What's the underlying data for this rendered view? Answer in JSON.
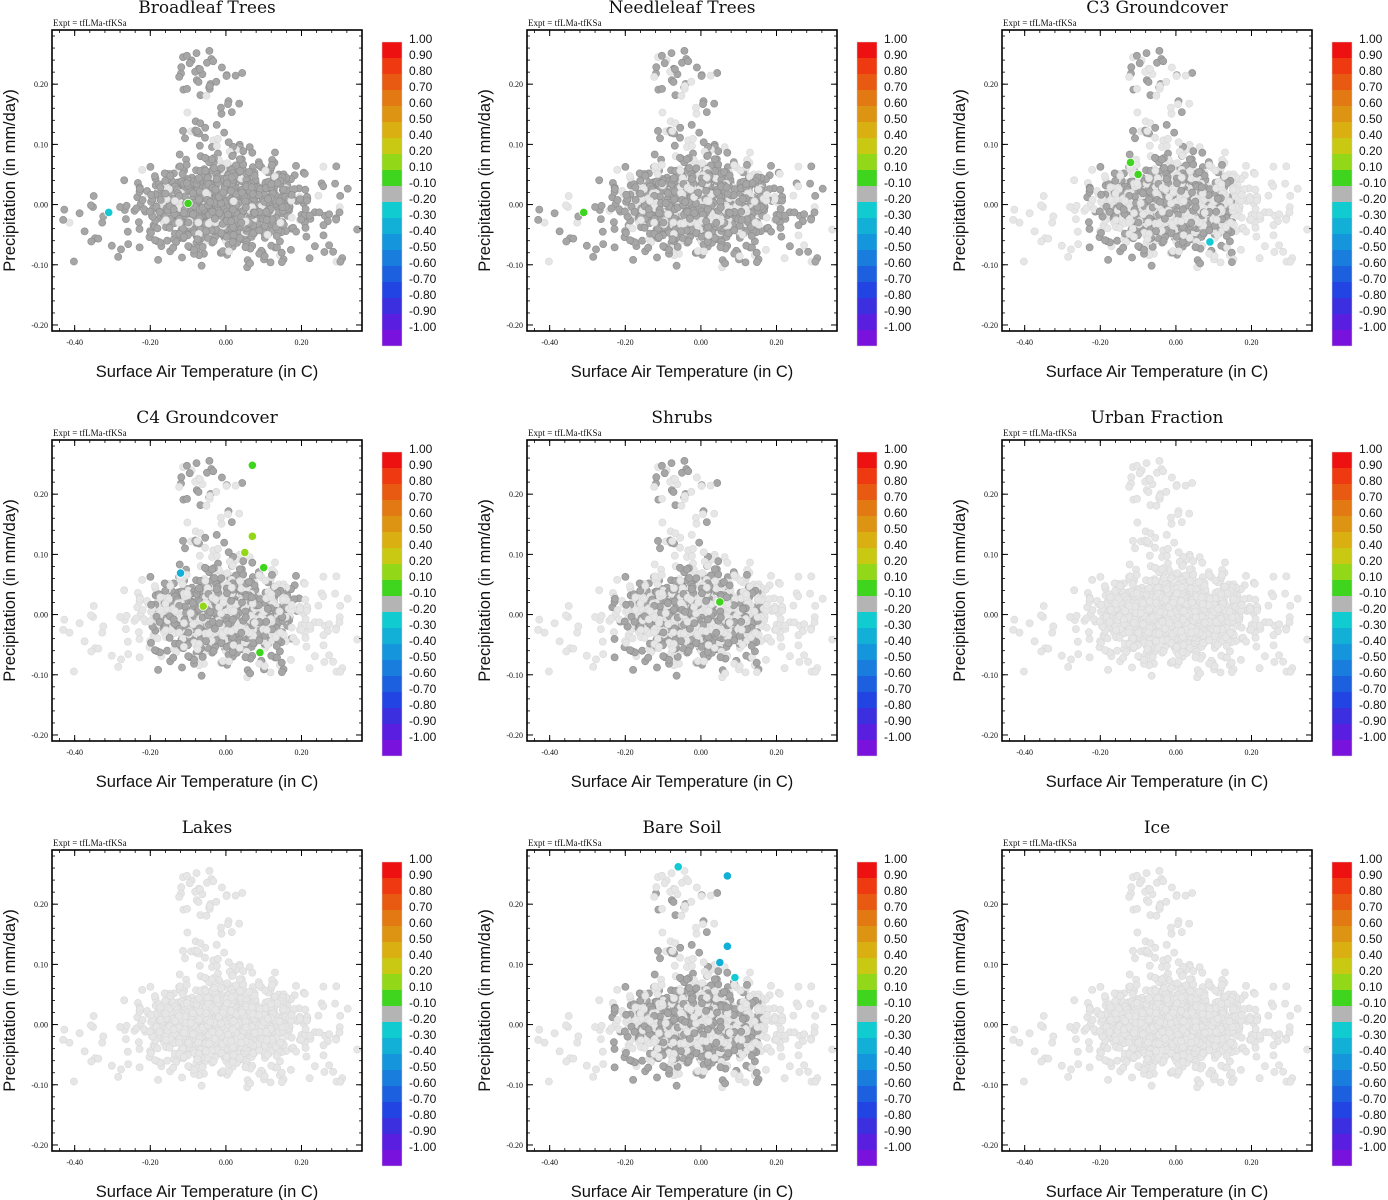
{
  "experiment_label": "Expt = tfLMa-tfKSa",
  "colorbar": {
    "labels": [
      "1.00",
      "0.90",
      "0.80",
      "0.70",
      "0.60",
      "0.50",
      "0.40",
      "0.20",
      "0.10",
      "-0.10",
      "-0.20",
      "-0.30",
      "-0.40",
      "-0.50",
      "-0.60",
      "-0.70",
      "-0.80",
      "-0.90",
      "-1.00"
    ],
    "colors": [
      "#ee1111",
      "#ef3a11",
      "#e85a12",
      "#e27913",
      "#de9413",
      "#d9af12",
      "#c9c913",
      "#93d719",
      "#3fd51f",
      "#b4b4b4",
      "#10cbd0",
      "#12b0d6",
      "#1596dc",
      "#197ddd",
      "#1d60df",
      "#2244e2",
      "#3b2fe0",
      "#5a1ee0",
      "#7a12dd"
    ],
    "colors_note": "red→green→grey(|r|<0.1)→cyan→blue→violet"
  },
  "chart_data": [
    {
      "type": "scatter",
      "title": "Broadleaf Trees",
      "xlabel": "Surface Air Temperature (in C)",
      "ylabel": "Precipitation (in mm/day)",
      "xlim": [
        -0.46,
        0.36
      ],
      "ylim": [
        -0.21,
        0.29
      ],
      "xticks": [
        "-0.40",
        "-0.20",
        "0.00",
        "0.20"
      ],
      "yticks": [
        "-0.20",
        "-0.10",
        "0.00",
        "0.10",
        "0.20"
      ],
      "background_color": "#e6e6e6",
      "dark_color": "#a6a6a6",
      "dark_fraction": 0.92,
      "dark_region": null,
      "highlights": [
        {
          "x": -0.31,
          "y": -0.013,
          "color": "#12c9d4"
        },
        {
          "x": -0.1,
          "y": 0.002,
          "color": "#3fd51f"
        }
      ]
    },
    {
      "type": "scatter",
      "title": "Needleleaf Trees",
      "xlabel": "Surface Air Temperature (in C)",
      "ylabel": "Precipitation (in mm/day)",
      "xlim": [
        -0.46,
        0.36
      ],
      "ylim": [
        -0.21,
        0.29
      ],
      "xticks": [
        "-0.40",
        "-0.20",
        "0.00",
        "0.20"
      ],
      "yticks": [
        "-0.20",
        "-0.10",
        "0.00",
        "0.10",
        "0.20"
      ],
      "background_color": "#e6e6e6",
      "dark_color": "#a6a6a6",
      "dark_fraction": 0.72,
      "dark_region": null,
      "highlights": [
        {
          "x": -0.31,
          "y": -0.013,
          "color": "#3fd51f"
        }
      ]
    },
    {
      "type": "scatter",
      "title": "C3 Groundcover",
      "xlabel": "Surface Air Temperature (in C)",
      "ylabel": "Precipitation (in mm/day)",
      "xlim": [
        -0.46,
        0.36
      ],
      "ylim": [
        -0.21,
        0.29
      ],
      "xticks": [
        "-0.40",
        "-0.20",
        "0.00",
        "0.20"
      ],
      "yticks": [
        "-0.20",
        "-0.10",
        "0.00",
        "0.10",
        "0.20"
      ],
      "background_color": "#e6e6e6",
      "dark_color": "#a6a6a6",
      "dark_fraction": 0.5,
      "dark_region": [
        -0.24,
        0.15,
        -0.18,
        0.27
      ],
      "highlights": [
        {
          "x": -0.12,
          "y": 0.07,
          "color": "#3fd51f"
        },
        {
          "x": -0.1,
          "y": 0.05,
          "color": "#3fd51f"
        },
        {
          "x": 0.09,
          "y": -0.062,
          "color": "#12c9d4"
        }
      ]
    },
    {
      "type": "scatter",
      "title": "C4 Groundcover",
      "xlabel": "Surface Air Temperature (in C)",
      "ylabel": "Precipitation (in mm/day)",
      "xlim": [
        -0.46,
        0.36
      ],
      "ylim": [
        -0.21,
        0.29
      ],
      "xticks": [
        "-0.40",
        "-0.20",
        "0.00",
        "0.20"
      ],
      "yticks": [
        "-0.20",
        "-0.10",
        "0.00",
        "0.10",
        "0.20"
      ],
      "background_color": "#e6e6e6",
      "dark_color": "#a6a6a6",
      "dark_fraction": 0.55,
      "dark_region": [
        -0.2,
        0.2,
        -0.2,
        0.27
      ],
      "highlights": [
        {
          "x": 0.07,
          "y": 0.248,
          "color": "#3fd51f"
        },
        {
          "x": 0.07,
          "y": 0.13,
          "color": "#93d719"
        },
        {
          "x": 0.05,
          "y": 0.103,
          "color": "#93d719"
        },
        {
          "x": 0.1,
          "y": 0.078,
          "color": "#3fd51f"
        },
        {
          "x": -0.12,
          "y": 0.069,
          "color": "#12b0d6"
        },
        {
          "x": -0.06,
          "y": 0.014,
          "color": "#93d719"
        },
        {
          "x": 0.09,
          "y": -0.063,
          "color": "#3fd51f"
        }
      ]
    },
    {
      "type": "scatter",
      "title": "Shrubs",
      "xlabel": "Surface Air Temperature (in C)",
      "ylabel": "Precipitation (in mm/day)",
      "xlim": [
        -0.46,
        0.36
      ],
      "ylim": [
        -0.21,
        0.29
      ],
      "xticks": [
        "-0.40",
        "-0.20",
        "0.00",
        "0.20"
      ],
      "yticks": [
        "-0.20",
        "-0.10",
        "0.00",
        "0.10",
        "0.20"
      ],
      "background_color": "#e6e6e6",
      "dark_color": "#a6a6a6",
      "dark_fraction": 0.45,
      "dark_region": [
        -0.24,
        0.16,
        -0.13,
        0.27
      ],
      "highlights": [
        {
          "x": 0.05,
          "y": 0.021,
          "color": "#3fd51f"
        }
      ]
    },
    {
      "type": "scatter",
      "title": "Urban Fraction",
      "xlabel": "Surface Air Temperature (in C)",
      "ylabel": "Precipitation (in mm/day)",
      "xlim": [
        -0.46,
        0.36
      ],
      "ylim": [
        -0.21,
        0.29
      ],
      "xticks": [
        "-0.40",
        "-0.20",
        "0.00",
        "0.20"
      ],
      "yticks": [
        "-0.20",
        "-0.10",
        "0.00",
        "0.10",
        "0.20"
      ],
      "background_color": "#e6e6e6",
      "dark_color": "#a6a6a6",
      "dark_fraction": 0,
      "dark_region": null,
      "highlights": []
    },
    {
      "type": "scatter",
      "title": "Lakes",
      "xlabel": "Surface Air Temperature (in C)",
      "ylabel": "Precipitation (in mm/day)",
      "xlim": [
        -0.46,
        0.36
      ],
      "ylim": [
        -0.21,
        0.29
      ],
      "xticks": [
        "-0.40",
        "-0.20",
        "0.00",
        "0.20"
      ],
      "yticks": [
        "-0.20",
        "-0.10",
        "0.00",
        "0.10",
        "0.20"
      ],
      "background_color": "#e6e6e6",
      "dark_color": "#a6a6a6",
      "dark_fraction": 0,
      "dark_region": null,
      "highlights": []
    },
    {
      "type": "scatter",
      "title": "Bare Soil",
      "xlabel": "Surface Air Temperature (in C)",
      "ylabel": "Precipitation (in mm/day)",
      "xlim": [
        -0.46,
        0.36
      ],
      "ylim": [
        -0.21,
        0.29
      ],
      "xticks": [
        "-0.40",
        "-0.20",
        "0.00",
        "0.20"
      ],
      "yticks": [
        "-0.20",
        "-0.10",
        "0.00",
        "0.10",
        "0.20"
      ],
      "background_color": "#e6e6e6",
      "dark_color": "#a6a6a6",
      "dark_fraction": 0.5,
      "dark_region": [
        -0.24,
        0.16,
        -0.14,
        0.22
      ],
      "highlights": [
        {
          "x": -0.06,
          "y": 0.262,
          "color": "#12c9d4"
        },
        {
          "x": 0.07,
          "y": 0.247,
          "color": "#12b0d6"
        },
        {
          "x": 0.07,
          "y": 0.13,
          "color": "#12b0d6"
        },
        {
          "x": 0.05,
          "y": 0.103,
          "color": "#12b0d6"
        },
        {
          "x": 0.09,
          "y": 0.078,
          "color": "#12c9d4"
        }
      ]
    },
    {
      "type": "scatter",
      "title": "Ice",
      "xlabel": "Surface Air Temperature (in C)",
      "ylabel": "Precipitation (in mm/day)",
      "xlim": [
        -0.46,
        0.36
      ],
      "ylim": [
        -0.21,
        0.29
      ],
      "xticks": [
        "-0.40",
        "-0.20",
        "0.00",
        "0.20"
      ],
      "yticks": [
        "-0.20",
        "-0.10",
        "0.00",
        "0.10",
        "0.20"
      ],
      "background_color": "#e6e6e6",
      "dark_color": "#a6a6a6",
      "dark_fraction": 0,
      "dark_region": null,
      "highlights": []
    }
  ]
}
